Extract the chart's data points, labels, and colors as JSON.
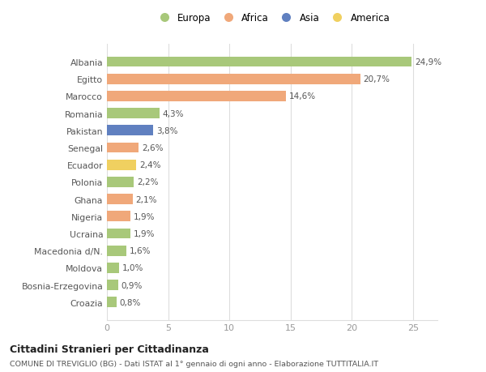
{
  "countries": [
    "Albania",
    "Egitto",
    "Marocco",
    "Romania",
    "Pakistan",
    "Senegal",
    "Ecuador",
    "Polonia",
    "Ghana",
    "Nigeria",
    "Ucraina",
    "Macedonia d/N.",
    "Moldova",
    "Bosnia-Erzegovina",
    "Croazia"
  ],
  "values": [
    24.9,
    20.7,
    14.6,
    4.3,
    3.8,
    2.6,
    2.4,
    2.2,
    2.1,
    1.9,
    1.9,
    1.6,
    1.0,
    0.9,
    0.8
  ],
  "labels": [
    "24,9%",
    "20,7%",
    "14,6%",
    "4,3%",
    "3,8%",
    "2,6%",
    "2,4%",
    "2,2%",
    "2,1%",
    "1,9%",
    "1,9%",
    "1,6%",
    "1,0%",
    "0,9%",
    "0,8%"
  ],
  "continents": [
    "Europa",
    "Africa",
    "Africa",
    "Europa",
    "Asia",
    "Africa",
    "America",
    "Europa",
    "Africa",
    "Africa",
    "Europa",
    "Europa",
    "Europa",
    "Europa",
    "Europa"
  ],
  "continent_colors": {
    "Europa": "#a8c87a",
    "Africa": "#f0a87a",
    "Asia": "#6080c0",
    "America": "#f0d060"
  },
  "legend_order": [
    "Europa",
    "Africa",
    "Asia",
    "America"
  ],
  "title": "Cittadini Stranieri per Cittadinanza",
  "subtitle": "COMUNE DI TREVIGLIO (BG) - Dati ISTAT al 1° gennaio di ogni anno - Elaborazione TUTTITALIA.IT",
  "xlim": [
    0,
    27
  ],
  "xticks": [
    0,
    5,
    10,
    15,
    20,
    25
  ],
  "background_color": "#ffffff",
  "bar_height": 0.6,
  "grid_color": "#dddddd",
  "label_color": "#555555",
  "ytick_color": "#555555",
  "xtick_color": "#999999"
}
